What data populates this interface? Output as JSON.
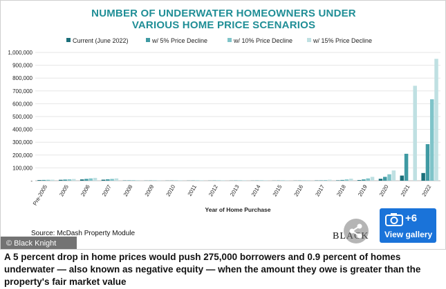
{
  "chart_data": {
    "type": "bar",
    "title_lines": [
      "NUMBER OF UNDERWATER HOMEOWNERS UNDER",
      "VARIOUS HOME PRICE SCENARIOS"
    ],
    "xlabel": "Year of Home Purchase",
    "ylabel": "",
    "ylim": [
      0,
      1000000
    ],
    "yticks": [
      "-",
      "100,000",
      "200,000",
      "300,000",
      "400,000",
      "500,000",
      "600,000",
      "700,000",
      "800,000",
      "900,000",
      "1,000,000"
    ],
    "grid": true,
    "legend_position": "top",
    "categories": [
      "Pre-2005",
      "2005",
      "2006",
      "2007",
      "2008",
      "2009",
      "2010",
      "2011",
      "2012",
      "2013",
      "2014",
      "2015",
      "2016",
      "2017",
      "2018",
      "2019",
      "2020",
      "2021",
      "2022"
    ],
    "series": [
      {
        "name": "Current (June 2022)",
        "color": "#1b6f7a",
        "values": [
          5000,
          7000,
          10000,
          8000,
          2000,
          1000,
          1000,
          1000,
          1000,
          1000,
          1000,
          1000,
          1000,
          2000,
          3000,
          5000,
          15000,
          40000,
          60000
        ]
      },
      {
        "name": "w/ 5% Price Decline",
        "color": "#3f9aa3",
        "values": [
          6000,
          9000,
          14000,
          11000,
          3000,
          2000,
          2000,
          2000,
          2000,
          2000,
          2000,
          2000,
          2000,
          3000,
          6000,
          10000,
          30000,
          210000,
          285000
        ]
      },
      {
        "name": "w/ 10% Price Decline",
        "color": "#7fc4c9",
        "values": [
          7000,
          11000,
          18000,
          14000,
          4000,
          3000,
          3000,
          3000,
          3000,
          3000,
          3000,
          3000,
          3000,
          5000,
          10000,
          18000,
          50000,
          0,
          635000
        ]
      },
      {
        "name": "w/ 15% Price Decline",
        "color": "#bfe0e2",
        "values": [
          8000,
          13000,
          22000,
          18000,
          5000,
          4000,
          4000,
          4000,
          4000,
          4000,
          4000,
          4000,
          5000,
          8000,
          16000,
          30000,
          80000,
          740000,
          950000
        ]
      }
    ]
  },
  "source": "Source: McDash Property Module",
  "watermark": "© Black Knight",
  "logo_text": "BLACK",
  "gallery": {
    "count": "+6",
    "label": "View gallery"
  },
  "caption": "A 5 percent drop in home prices would push 275,000 borrowers and 0.9 percent of homes underwater — also known as negative equity — when the amount they owe is greater than the property's fair market value"
}
